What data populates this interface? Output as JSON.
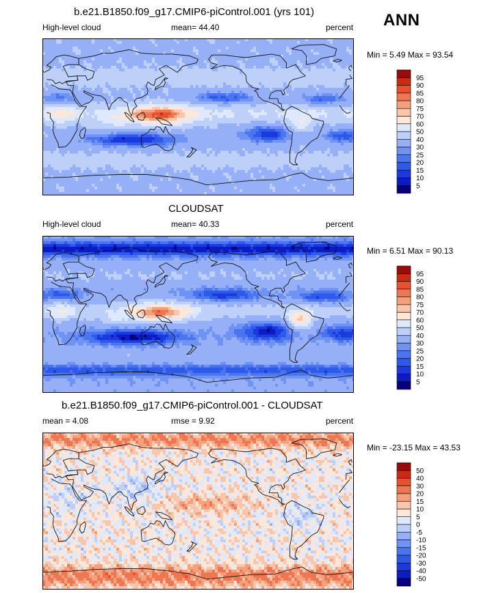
{
  "season": "ANN",
  "colors": {
    "ramp": [
      "#08007a",
      "#0b1cc2",
      "#1a3ae0",
      "#2d5ae8",
      "#4a74f0",
      "#6f92f5",
      "#95b0f7",
      "#bcd0fa",
      "#dfe9fd",
      "#fde7d8",
      "#f9c6ab",
      "#f3a07b",
      "#ee7650",
      "#e9502e",
      "#cc2a12",
      "#9a0b0a"
    ],
    "coast": "#111111"
  },
  "panels": [
    {
      "title": "b.e21.B1850.f09_g17.CMIP6-piControl.001 (yrs 101)",
      "left_label": "High-level cloud",
      "center_label": "mean=  44.40",
      "right_label": "percent",
      "minmax": "Min =   5.49 Max =  93.54"
    },
    {
      "title": "CLOUDSAT",
      "left_label": "High-level cloud",
      "center_label": "mean=  40.33",
      "right_label": "percent",
      "minmax": "Min =   6.51 Max =  90.13"
    },
    {
      "title": "b.e21.B1850.f09_g17.CMIP6-piControl.001 - CLOUDSAT",
      "left_label": "mean =   4.08",
      "center_label": "rmse =    9.92",
      "right_label": "percent",
      "minmax": "Min = -23.15 Max =  43.53"
    }
  ],
  "chart_data": [
    {
      "type": "heatmap",
      "title": "b.e21.B1850.f09_g17.CMIP6-piControl.001 (yrs 101)",
      "variable": "High-level cloud",
      "units": "percent",
      "mean": 44.4,
      "min": 5.49,
      "max": 93.54,
      "colorbar_levels": [
        95,
        90,
        85,
        80,
        75,
        70,
        60,
        50,
        40,
        30,
        25,
        20,
        15,
        10,
        5
      ]
    },
    {
      "type": "heatmap",
      "title": "CLOUDSAT",
      "variable": "High-level cloud",
      "units": "percent",
      "mean": 40.33,
      "min": 6.51,
      "max": 90.13,
      "colorbar_levels": [
        95,
        90,
        85,
        80,
        75,
        70,
        60,
        50,
        40,
        30,
        25,
        20,
        15,
        10,
        5
      ]
    },
    {
      "type": "heatmap",
      "title": "b.e21.B1850.f09_g17.CMIP6-piControl.001 - CLOUDSAT",
      "units": "percent",
      "mean": 4.08,
      "rmse": 9.92,
      "min": -23.15,
      "max": 43.53,
      "colorbar_levels": [
        50,
        40,
        30,
        20,
        15,
        10,
        5,
        0,
        -5,
        -10,
        -15,
        -20,
        -30,
        -40,
        -50
      ]
    }
  ]
}
